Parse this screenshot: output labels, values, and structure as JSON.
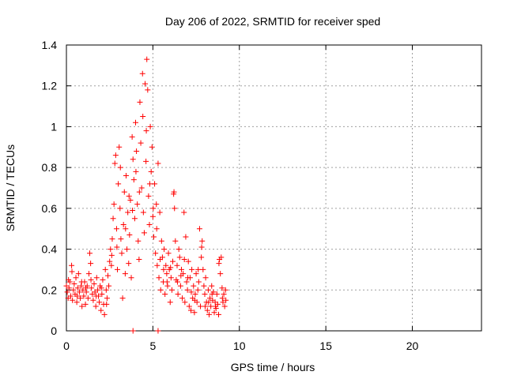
{
  "chart_data": {
    "type": "scatter",
    "title": "Day 206 of 2022, SRMTID for receiver sped",
    "xlabel": "GPS time / hours",
    "ylabel": "SRMTID / TECUs",
    "xlim": [
      0,
      24
    ],
    "ylim": [
      0,
      1.4
    ],
    "xticks": [
      0,
      5,
      10,
      15,
      20
    ],
    "xtick_labels": [
      "0",
      "5",
      "10",
      "15",
      "20"
    ],
    "yticks": [
      0,
      0.2,
      0.4,
      0.6,
      0.8,
      1.0,
      1.2,
      1.4
    ],
    "ytick_labels": [
      "0",
      "0.2",
      "0.4",
      "0.6",
      "0.8",
      "1",
      "1.2",
      "1.4"
    ],
    "grid": true,
    "marker": "plus",
    "color": "#ff0000",
    "series": [
      {
        "name": "SRMTID",
        "points": [
          [
            0.0,
            0.22
          ],
          [
            0.05,
            0.19
          ],
          [
            0.1,
            0.16
          ],
          [
            0.15,
            0.21
          ],
          [
            0.2,
            0.24
          ],
          [
            0.25,
            0.17
          ],
          [
            0.3,
            0.32
          ],
          [
            0.35,
            0.15
          ],
          [
            0.4,
            0.2
          ],
          [
            0.45,
            0.23
          ],
          [
            0.5,
            0.18
          ],
          [
            0.55,
            0.26
          ],
          [
            0.6,
            0.14
          ],
          [
            0.65,
            0.21
          ],
          [
            0.7,
            0.28
          ],
          [
            0.75,
            0.19
          ],
          [
            0.8,
            0.16
          ],
          [
            0.85,
            0.22
          ],
          [
            0.9,
            0.12
          ],
          [
            0.95,
            0.2
          ],
          [
            1.0,
            0.17
          ],
          [
            1.05,
            0.24
          ],
          [
            1.1,
            0.13
          ],
          [
            1.15,
            0.19
          ],
          [
            1.2,
            0.22
          ],
          [
            1.25,
            0.16
          ],
          [
            1.3,
            0.28
          ],
          [
            1.35,
            0.38
          ],
          [
            1.4,
            0.33
          ],
          [
            1.45,
            0.21
          ],
          [
            1.5,
            0.18
          ],
          [
            1.55,
            0.15
          ],
          [
            1.6,
            0.23
          ],
          [
            1.65,
            0.19
          ],
          [
            1.7,
            0.12
          ],
          [
            1.75,
            0.26
          ],
          [
            1.8,
            0.2
          ],
          [
            1.85,
            0.17
          ],
          [
            1.9,
            0.14
          ],
          [
            1.95,
            0.22
          ],
          [
            2.0,
            0.1
          ],
          [
            2.05,
            0.18
          ],
          [
            2.1,
            0.25
          ],
          [
            2.15,
            0.13
          ],
          [
            2.2,
            0.08
          ],
          [
            2.25,
            0.3
          ],
          [
            2.3,
            0.2
          ],
          [
            2.35,
            0.16
          ],
          [
            2.4,
            0.27
          ],
          [
            2.45,
            0.22
          ],
          [
            2.5,
            0.34
          ],
          [
            2.55,
            0.4
          ],
          [
            2.6,
            0.32
          ],
          [
            2.65,
            0.45
          ],
          [
            2.7,
            0.55
          ],
          [
            2.75,
            0.62
          ],
          [
            2.8,
            0.82
          ],
          [
            2.85,
            0.86
          ],
          [
            2.9,
            0.5
          ],
          [
            2.95,
            0.3
          ],
          [
            3.0,
            0.72
          ],
          [
            3.05,
            0.9
          ],
          [
            3.1,
            0.6
          ],
          [
            3.15,
            0.45
          ],
          [
            3.2,
            0.38
          ],
          [
            3.25,
            0.16
          ],
          [
            3.3,
            0.52
          ],
          [
            3.35,
            0.68
          ],
          [
            3.4,
            0.28
          ],
          [
            3.45,
            0.76
          ],
          [
            3.5,
            0.4
          ],
          [
            3.55,
            0.58
          ],
          [
            3.6,
            0.33
          ],
          [
            3.65,
            0.47
          ],
          [
            3.7,
            0.64
          ],
          [
            3.75,
            0.26
          ],
          [
            3.8,
            0.95
          ],
          [
            3.85,
            0.84
          ],
          [
            3.9,
            0.74
          ],
          [
            3.95,
            0.55
          ],
          [
            4.0,
            1.02
          ],
          [
            4.05,
            0.88
          ],
          [
            4.1,
            0.62
          ],
          [
            4.15,
            0.44
          ],
          [
            4.2,
            0.35
          ],
          [
            4.25,
            1.12
          ],
          [
            4.3,
            0.92
          ],
          [
            4.35,
            0.7
          ],
          [
            4.4,
            1.26
          ],
          [
            4.45,
            0.58
          ],
          [
            4.5,
            0.48
          ],
          [
            4.55,
            1.21
          ],
          [
            4.6,
            0.83
          ],
          [
            4.65,
            1.33
          ],
          [
            4.7,
            1.18
          ],
          [
            4.75,
            0.66
          ],
          [
            4.8,
            0.52
          ],
          [
            4.85,
            1.0
          ],
          [
            4.9,
            0.78
          ],
          [
            4.95,
            0.9
          ],
          [
            5.0,
            0.56
          ],
          [
            5.05,
            0.46
          ],
          [
            5.1,
            0.72
          ],
          [
            5.15,
            0.38
          ],
          [
            5.2,
            0.62
          ],
          [
            5.25,
            0.32
          ],
          [
            5.3,
            0.82
          ],
          [
            5.35,
            0.26
          ],
          [
            5.4,
            0.58
          ],
          [
            5.45,
            0.2
          ],
          [
            5.5,
            0.44
          ],
          [
            5.55,
            0.36
          ],
          [
            5.6,
            0.24
          ],
          [
            5.65,
            0.4
          ],
          [
            5.7,
            0.18
          ],
          [
            5.75,
            0.32
          ],
          [
            5.8,
            0.28
          ],
          [
            5.85,
            0.22
          ],
          [
            5.9,
            0.38
          ],
          [
            5.95,
            0.3
          ],
          [
            6.0,
            0.14
          ],
          [
            6.05,
            0.26
          ],
          [
            6.1,
            0.2
          ],
          [
            6.15,
            0.34
          ],
          [
            6.2,
            0.67
          ],
          [
            6.25,
            0.6
          ],
          [
            6.3,
            0.44
          ],
          [
            6.35,
            0.25
          ],
          [
            6.4,
            0.32
          ],
          [
            6.45,
            0.18
          ],
          [
            6.5,
            0.4
          ],
          [
            6.55,
            0.36
          ],
          [
            6.6,
            0.22
          ],
          [
            6.65,
            0.3
          ],
          [
            6.7,
            0.16
          ],
          [
            6.75,
            0.28
          ],
          [
            6.8,
            0.58
          ],
          [
            6.85,
            0.14
          ],
          [
            6.9,
            0.46
          ],
          [
            6.95,
            0.24
          ],
          [
            7.0,
            0.2
          ],
          [
            7.05,
            0.34
          ],
          [
            7.1,
            0.12
          ],
          [
            7.15,
            0.26
          ],
          [
            7.2,
            0.1
          ],
          [
            7.25,
            0.3
          ],
          [
            7.3,
            0.16
          ],
          [
            7.35,
            0.22
          ],
          [
            7.4,
            0.09
          ],
          [
            7.45,
            0.18
          ],
          [
            7.5,
            0.28
          ],
          [
            7.55,
            0.14
          ],
          [
            7.6,
            0.2
          ],
          [
            7.65,
            0.24
          ],
          [
            7.7,
            0.5
          ],
          [
            7.75,
            0.12
          ],
          [
            7.8,
            0.36
          ],
          [
            7.85,
            0.44
          ],
          [
            7.9,
            0.3
          ],
          [
            7.95,
            0.22
          ],
          [
            8.0,
            0.18
          ],
          [
            8.05,
            0.26
          ],
          [
            8.1,
            0.14
          ],
          [
            8.15,
            0.1
          ],
          [
            8.2,
            0.2
          ],
          [
            8.25,
            0.08
          ],
          [
            8.3,
            0.16
          ],
          [
            8.35,
            0.12
          ],
          [
            8.4,
            0.22
          ],
          [
            8.45,
            0.15
          ],
          [
            8.5,
            0.19
          ],
          [
            8.55,
            0.09
          ],
          [
            8.6,
            0.14
          ],
          [
            8.65,
            0.11
          ],
          [
            8.7,
            0.18
          ],
          [
            8.75,
            0.13
          ],
          [
            8.8,
            0.08
          ],
          [
            8.85,
            0.35
          ],
          [
            8.9,
            0.28
          ],
          [
            8.95,
            0.36
          ],
          [
            9.0,
            0.21
          ],
          [
            9.05,
            0.14
          ],
          [
            9.1,
            0.18
          ],
          [
            9.15,
            0.12
          ],
          [
            9.2,
            0.2
          ],
          [
            0.12,
            0.25
          ],
          [
            0.32,
            0.29
          ],
          [
            0.62,
            0.17
          ],
          [
            0.88,
            0.24
          ],
          [
            1.12,
            0.21
          ],
          [
            1.42,
            0.25
          ],
          [
            1.72,
            0.17
          ],
          [
            2.02,
            0.21
          ],
          [
            2.32,
            0.13
          ],
          [
            2.62,
            0.37
          ],
          [
            2.92,
            0.41
          ],
          [
            3.12,
            0.8
          ],
          [
            3.42,
            0.5
          ],
          [
            3.62,
            0.66
          ],
          [
            3.82,
            0.59
          ],
          [
            4.02,
            0.78
          ],
          [
            4.22,
            0.68
          ],
          [
            4.42,
            1.05
          ],
          [
            4.62,
            0.98
          ],
          [
            4.82,
            0.72
          ],
          [
            5.02,
            0.6
          ],
          [
            5.22,
            0.5
          ],
          [
            5.42,
            0.35
          ],
          [
            5.62,
            0.3
          ],
          [
            5.82,
            0.24
          ],
          [
            6.02,
            0.31
          ],
          [
            6.22,
            0.68
          ],
          [
            6.42,
            0.24
          ],
          [
            6.62,
            0.27
          ],
          [
            6.82,
            0.35
          ],
          [
            7.02,
            0.26
          ],
          [
            7.22,
            0.19
          ],
          [
            7.42,
            0.15
          ],
          [
            7.62,
            0.3
          ],
          [
            7.82,
            0.41
          ],
          [
            8.02,
            0.12
          ],
          [
            8.22,
            0.14
          ],
          [
            8.42,
            0.18
          ],
          [
            8.62,
            0.12
          ],
          [
            8.82,
            0.33
          ],
          [
            9.02,
            0.16
          ],
          [
            9.22,
            0.15
          ],
          [
            3.85,
            0.0
          ],
          [
            5.3,
            0.0
          ]
        ]
      }
    ]
  }
}
